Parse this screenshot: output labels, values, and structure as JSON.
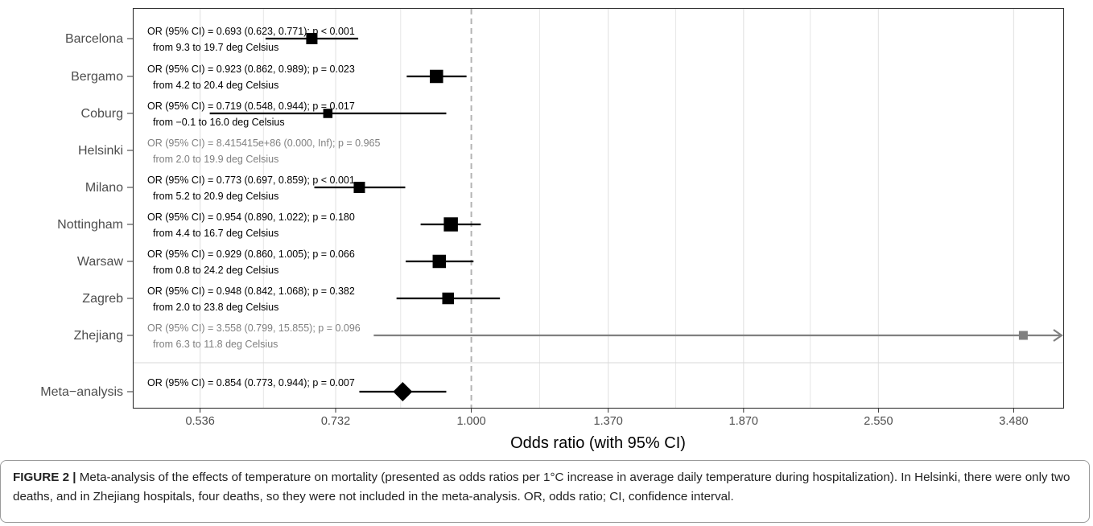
{
  "chart_data": {
    "type": "forest",
    "xlabel": "Odds ratio (with 95% CI)",
    "x_scale": "log",
    "xlim": [
      0.46,
      3.9
    ],
    "reference_line": 1.0,
    "xticks": [
      0.536,
      0.732,
      1.0,
      1.37,
      1.87,
      2.55,
      3.48
    ],
    "xtick_labels": [
      "0.536",
      "0.732",
      "1.000",
      "1.370",
      "1.870",
      "2.550",
      "3.480"
    ],
    "grid": true,
    "rows": [
      {
        "label": "Barcelona",
        "or": 0.693,
        "lo": 0.623,
        "hi": 0.771,
        "weight": 0.6,
        "greyed": false,
        "line1": "OR (95% CI) = 0.693 (0.623, 0.771); p < 0.001",
        "line2": "from 9.3 to 19.7 deg Celsius"
      },
      {
        "label": "Bergamo",
        "or": 0.923,
        "lo": 0.862,
        "hi": 0.989,
        "weight": 0.85,
        "greyed": false,
        "line1": "OR (95% CI) = 0.923 (0.862, 0.989); p = 0.023",
        "line2": "from 4.2 to 20.4 deg Celsius"
      },
      {
        "label": "Coburg",
        "or": 0.719,
        "lo": 0.548,
        "hi": 0.944,
        "weight": 0.35,
        "greyed": false,
        "line1": "OR (95% CI) = 0.719 (0.548, 0.944); p = 0.017",
        "line2": "from −0.1 to 16.0 deg Celsius"
      },
      {
        "label": "Helsinki",
        "or": null,
        "lo": null,
        "hi": null,
        "weight": 0,
        "greyed": true,
        "line1": "OR (95% CI) = 8.415415e+86 (0.000, Inf); p = 0.965",
        "line2": "from 2.0 to 19.9 deg Celsius"
      },
      {
        "label": "Milano",
        "or": 0.773,
        "lo": 0.697,
        "hi": 0.859,
        "weight": 0.6,
        "greyed": false,
        "line1": "OR (95% CI) = 0.773 (0.697, 0.859); p < 0.001",
        "line2": "from 5.2 to 20.9 deg Celsius"
      },
      {
        "label": "Nottingham",
        "or": 0.954,
        "lo": 0.89,
        "hi": 1.022,
        "weight": 0.95,
        "greyed": false,
        "line1": "OR (95% CI) = 0.954 (0.890, 1.022); p = 0.180",
        "line2": "from 4.4 to 16.7 deg Celsius"
      },
      {
        "label": "Warsaw",
        "or": 0.929,
        "lo": 0.86,
        "hi": 1.005,
        "weight": 0.85,
        "greyed": false,
        "line1": "OR (95% CI) = 0.929 (0.860, 1.005); p = 0.066",
        "line2": "from 0.8 to 24.2 deg Celsius"
      },
      {
        "label": "Zagreb",
        "or": 0.948,
        "lo": 0.842,
        "hi": 1.068,
        "weight": 0.65,
        "greyed": false,
        "line1": "OR (95% CI) = 0.948 (0.842, 1.068); p = 0.382",
        "line2": "from 2.0 to 23.8 deg Celsius"
      },
      {
        "label": "Zhejiang",
        "or": 3.558,
        "lo": 0.799,
        "hi": 15.855,
        "weight": 0.3,
        "greyed": true,
        "line1": "OR (95% CI) = 3.558 (0.799, 15.855); p = 0.096",
        "line2": "from 6.3 to 11.8 deg Celsius"
      }
    ],
    "meta": {
      "label": "Meta−analysis",
      "or": 0.854,
      "lo": 0.773,
      "hi": 0.944,
      "line1": "OR (95% CI) = 0.854 (0.773, 0.944); p = 0.007"
    },
    "colors": {
      "active": "#000000",
      "greyed": "#808080",
      "reference": "#b3b3b3",
      "grid": "#e6e6e6"
    }
  },
  "caption": {
    "label": "FIGURE 2 |",
    "text": "Meta-analysis of the effects of temperature on mortality (presented as odds ratios per 1°C increase in average daily temperature during hospitalization). In Helsinki, there were only two deaths, and in Zhejiang hospitals, four deaths, so they were not included in the meta-analysis. OR, odds ratio; CI, confidence interval."
  }
}
